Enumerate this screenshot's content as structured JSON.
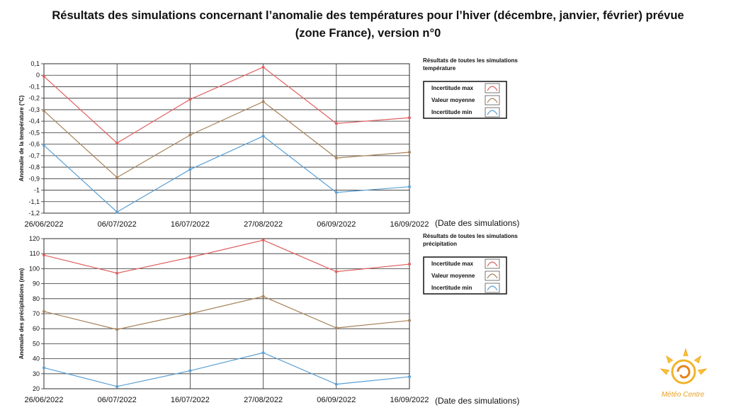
{
  "title": {
    "line1": "Résultats des simulations concernant l’anomalie des températures pour l’hiver (décembre, janvier, février) prévue",
    "line2": "(zone France), version n°0"
  },
  "logo": {
    "text": "Météo Centre",
    "icon": "sun-spiral-icon"
  },
  "chart_data": [
    {
      "type": "line",
      "ylabel": "Anomalie de la température (°C)",
      "xlabel": "(Date des simulations)",
      "categories": [
        "26/06/2022",
        "06/07/2022",
        "16/07/2022",
        "27/08/2022",
        "06/09/2022",
        "16/09/2022"
      ],
      "ylim": [
        -1.2,
        0.1
      ],
      "yticks": [
        "0,1",
        "0",
        "-0,1",
        "-0,2",
        "-0,3",
        "-0,4",
        "-0,5",
        "-0,6",
        "-0,7",
        "-0,8",
        "-0,9",
        "-1",
        "-1,1",
        "-1,2"
      ],
      "grid": true,
      "legend": {
        "title_line1": "Résultats de toutes les simulations",
        "title_line2": "température",
        "placement": "right"
      },
      "series": [
        {
          "name": "Incertitude max",
          "color": "#e06060",
          "values": [
            -0.01,
            -0.59,
            -0.21,
            0.07,
            -0.42,
            -0.37
          ]
        },
        {
          "name": "Valeur moyenne",
          "color": "#a8835a",
          "values": [
            -0.31,
            -0.89,
            -0.52,
            -0.23,
            -0.72,
            -0.67
          ]
        },
        {
          "name": "Incertitude min",
          "color": "#5a9fd4",
          "values": [
            -0.61,
            -1.19,
            -0.82,
            -0.53,
            -1.02,
            -0.97
          ]
        }
      ]
    },
    {
      "type": "line",
      "ylabel": "Anomalie des précipitations (mm)",
      "xlabel": "(Date des simulations)",
      "categories": [
        "26/06/2022",
        "06/07/2022",
        "16/07/2022",
        "27/08/2022",
        "06/09/2022",
        "16/09/2022"
      ],
      "ylim": [
        20,
        120
      ],
      "yticks": [
        "120",
        "110",
        "100",
        "90",
        "80",
        "70",
        "60",
        "50",
        "40",
        "30",
        "20"
      ],
      "grid": true,
      "legend": {
        "title_line1": "Résultats de toutes les simulations",
        "title_line2": "précipitation",
        "placement": "right"
      },
      "series": [
        {
          "name": "Incertitude max",
          "color": "#e06060",
          "values": [
            109,
            97,
            107.5,
            119,
            98,
            103
          ]
        },
        {
          "name": "Valeur moyenne",
          "color": "#a8835a",
          "values": [
            71.5,
            59.5,
            70,
            81.5,
            60.5,
            65.5
          ]
        },
        {
          "name": "Incertitude min",
          "color": "#5a9fd4",
          "values": [
            34,
            21.5,
            32,
            44,
            23,
            28
          ]
        }
      ]
    }
  ]
}
